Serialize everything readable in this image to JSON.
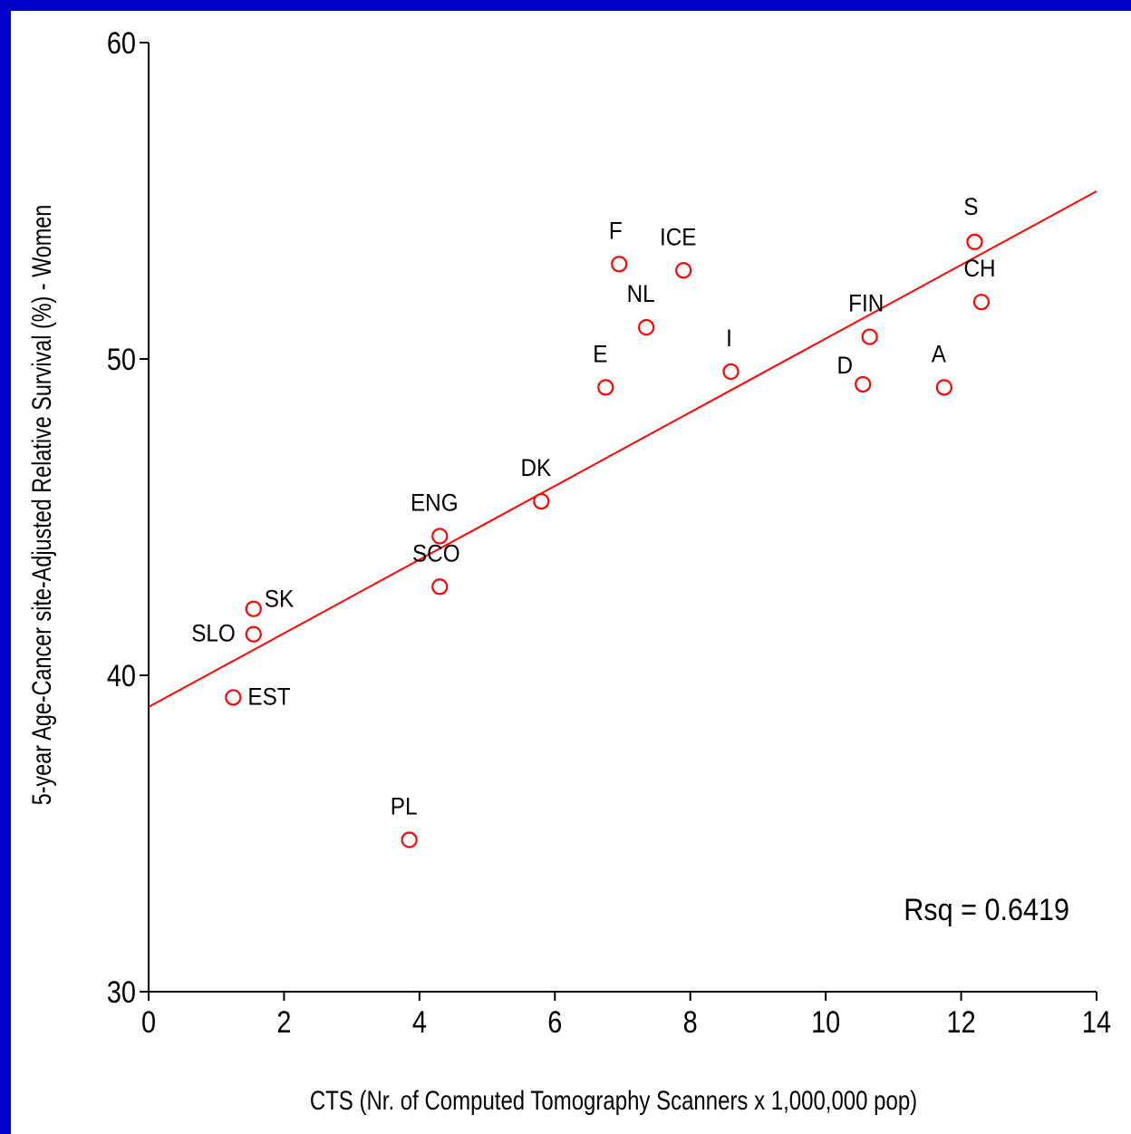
{
  "chart_data": {
    "type": "scatter",
    "xlabel": "CTS (Nr. of Computed Tomography Scanners x 1,000,000 pop)",
    "ylabel": "5-year Age-Cancer site-Adjusted Relative Survival (%) - Women",
    "xlim": [
      0,
      14
    ],
    "ylim": [
      30,
      60
    ],
    "x_ticks": [
      0,
      2,
      4,
      6,
      8,
      10,
      12,
      14
    ],
    "y_ticks": [
      30,
      40,
      50,
      60
    ],
    "grid": false,
    "annotation": "Rsq = 0.6419",
    "point_color": "#ff0000",
    "line_color": "#ff0000",
    "background": "#ffffff",
    "border_color": "#0000cc",
    "fit_line": {
      "x": [
        0,
        14
      ],
      "y": [
        39.0,
        55.3
      ]
    },
    "points": [
      {
        "label": "S",
        "x": 12.2,
        "y": 53.7
      },
      {
        "label": "CH",
        "x": 12.3,
        "y": 51.8
      },
      {
        "label": "F",
        "x": 6.95,
        "y": 53.0
      },
      {
        "label": "ICE",
        "x": 7.9,
        "y": 52.8
      },
      {
        "label": "NL",
        "x": 7.35,
        "y": 51.0
      },
      {
        "label": "FIN",
        "x": 10.65,
        "y": 50.7
      },
      {
        "label": "I",
        "x": 8.6,
        "y": 49.6
      },
      {
        "label": "E",
        "x": 6.75,
        "y": 49.1
      },
      {
        "label": "D",
        "x": 10.55,
        "y": 49.2
      },
      {
        "label": "A",
        "x": 11.75,
        "y": 49.1
      },
      {
        "label": "DK",
        "x": 5.8,
        "y": 45.5
      },
      {
        "label": "ENG",
        "x": 4.3,
        "y": 44.4
      },
      {
        "label": "SCO",
        "x": 4.3,
        "y": 42.8
      },
      {
        "label": "SK",
        "x": 1.55,
        "y": 42.1
      },
      {
        "label": "SLO",
        "x": 1.55,
        "y": 41.3
      },
      {
        "label": "EST",
        "x": 1.25,
        "y": 39.3
      },
      {
        "label": "PL",
        "x": 3.85,
        "y": 34.8
      }
    ]
  }
}
